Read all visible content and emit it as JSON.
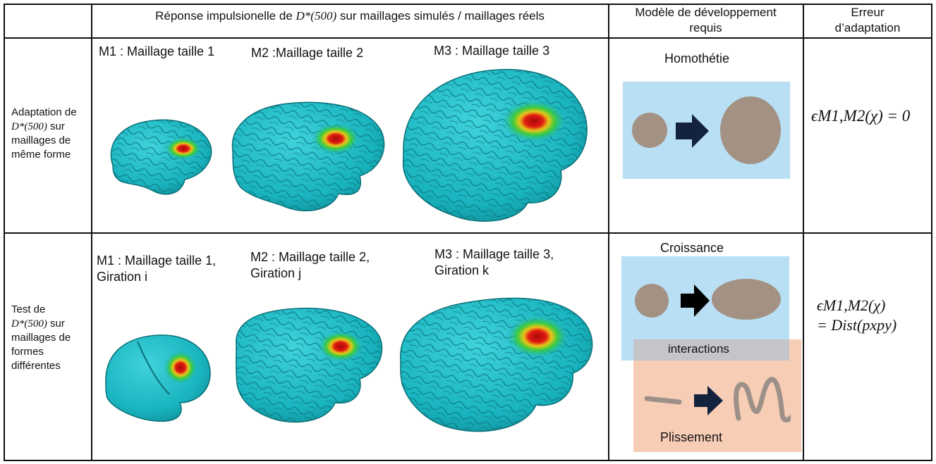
{
  "header": {
    "col1_prefix": "Réponse impulsionelle de",
    "col1_math": "D*(500)",
    "col1_suffix": "sur maillages simulés / maillages réels",
    "col2": "Modèle de développement requis",
    "col3": "Erreur d’adaptation"
  },
  "rows": [
    {
      "label_line1": "Adaptation de",
      "label_math": "D*(500)",
      "label_math_suffix": "sur",
      "label_line3": "maillages de",
      "label_line4": "même forme",
      "mesh_labels": [
        "M1 : Maillage taille 1",
        "M2 :Maillage taille 2",
        "M3 : Maillage taille 3"
      ],
      "model_title": "Homothétie",
      "error_formula": "ϵM1,M2(χ) = 0"
    },
    {
      "label_line1": "Test de",
      "label_math": "D*(500)",
      "label_math_suffix": "sur",
      "label_line3": "maillages de",
      "label_line4": "formes",
      "label_line5": "différentes",
      "mesh_labels": [
        {
          "line1": "M1 : Maillage taille 1,",
          "line2": "Giration i"
        },
        {
          "line1": "M2 : Maillage taille 2,",
          "line2": "Giration j"
        },
        {
          "line1": "M3 : Maillage taille 3,",
          "line2": "Giration k"
        }
      ],
      "model_title": "Croissance",
      "model_interactions": "interactions",
      "model_plissement": "Plissement",
      "error_formula_line1": "ϵM1,M2(χ)",
      "error_formula_line2": "= Dist(pxpy)"
    }
  ],
  "colors": {
    "brain": "#19b4bf",
    "brain_dark": "#0d7f88",
    "activation_red": "#d31212",
    "activation_green": "#3ecb3e",
    "blue_box": "#b8dff3",
    "orange_box": "#f6c9b0",
    "shape_fill": "#a39183",
    "arrow_fill": "#14233d",
    "black_arrow": "#000000"
  }
}
